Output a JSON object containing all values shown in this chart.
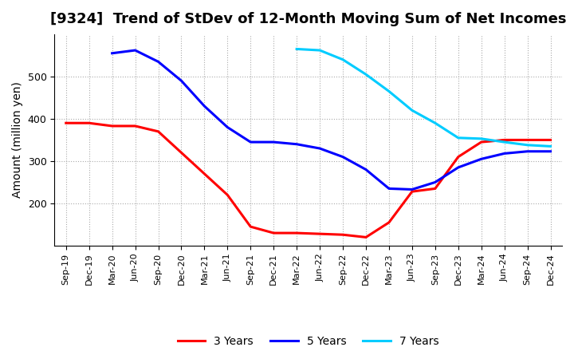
{
  "title": "[9324]  Trend of StDev of 12-Month Moving Sum of Net Incomes",
  "ylabel": "Amount (million yen)",
  "background_color": "#ffffff",
  "grid_color": "#aaaaaa",
  "x_labels": [
    "Sep-19",
    "Dec-19",
    "Mar-20",
    "Jun-20",
    "Sep-20",
    "Dec-20",
    "Mar-21",
    "Jun-21",
    "Sep-21",
    "Dec-21",
    "Mar-22",
    "Jun-22",
    "Sep-22",
    "Dec-22",
    "Mar-23",
    "Jun-23",
    "Sep-23",
    "Dec-23",
    "Mar-24",
    "Jun-24",
    "Sep-24",
    "Dec-24"
  ],
  "series": {
    "3 Years": {
      "color": "#ff0000",
      "values": [
        390,
        390,
        383,
        383,
        370,
        320,
        270,
        220,
        145,
        130,
        130,
        128,
        126,
        120,
        155,
        228,
        235,
        310,
        345,
        350,
        350,
        350
      ]
    },
    "5 Years": {
      "color": "#0000ff",
      "values": [
        null,
        null,
        555,
        562,
        535,
        490,
        430,
        380,
        345,
        345,
        340,
        330,
        310,
        280,
        235,
        233,
        250,
        285,
        305,
        318,
        323,
        323
      ]
    },
    "7 Years": {
      "color": "#00ccff",
      "values": [
        null,
        null,
        null,
        null,
        null,
        null,
        null,
        null,
        null,
        null,
        565,
        562,
        540,
        505,
        465,
        420,
        390,
        355,
        353,
        345,
        338,
        335
      ]
    },
    "10 Years": {
      "color": "#006600",
      "values": [
        null,
        null,
        null,
        null,
        null,
        null,
        null,
        null,
        null,
        null,
        null,
        null,
        null,
        null,
        null,
        null,
        null,
        null,
        null,
        null,
        null,
        null
      ]
    }
  },
  "ylim": [
    100,
    600
  ],
  "yticks": [
    200,
    300,
    400,
    500
  ],
  "title_fontsize": 13,
  "axis_fontsize": 10,
  "legend_fontsize": 10
}
